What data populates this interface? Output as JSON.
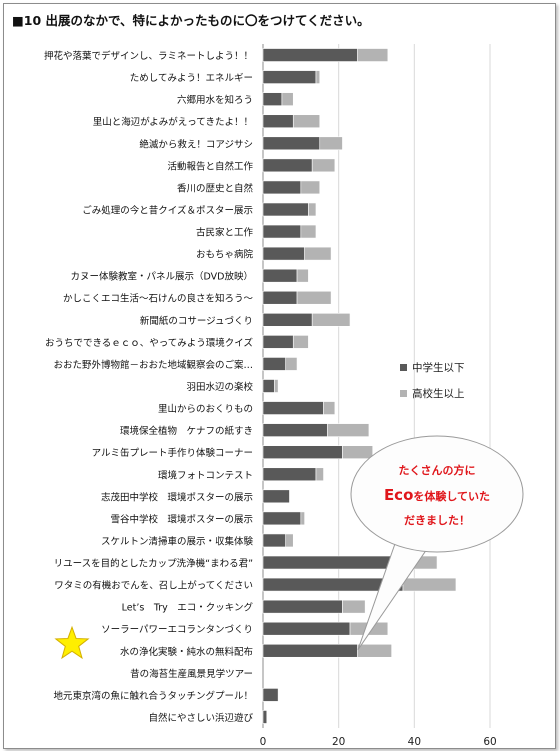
{
  "title": "■10 出展のなかで、特によかったものに〇をつけてください。",
  "colors": {
    "series1": "#595959",
    "series2": "#b3b3b3",
    "grid": "#d9d9d9",
    "callout": "#e0161b",
    "star": "#ffef00"
  },
  "callout": {
    "line1": "たくさんの方に",
    "line2_big": "Eco",
    "line2_rest": "を体験していた",
    "line3": "だきました！"
  },
  "chart_data": {
    "type": "bar",
    "orientation": "horizontal",
    "stacked": true,
    "title": "",
    "xlim": [
      0,
      60
    ],
    "xticks": [
      "0",
      "20",
      "40",
      "60"
    ],
    "grid": true,
    "legend_position": "right",
    "categories": [
      "押花や落葉でデザインし、ラミネートしよう！！",
      "ためしてみよう！エネルギー",
      "六郷用水を知ろう",
      "里山と海辺がよみがえってきたよ！！",
      "絶滅から救え！コアジサシ",
      "活動報告と自然工作",
      "香川の歴史と自然",
      "ごみ処理の今と昔クイズ＆ポスター展示",
      "古民家と工作",
      "おもちゃ病院",
      "カヌー体験教室・パネル展示（DVD放映）",
      "かしこくエコ生活～石けんの良さを知ろう～",
      "新聞紙のコサージュづくり",
      "おうちでできるｅｃｏ、やってみよう環境クイズ",
      "おおた野外博物館－おおた地域観察会のご案…",
      "羽田水辺の楽校",
      "里山からのおくりもの",
      "環境保全植物　ケナフの紙すき",
      "アルミ缶プレート手作り体験コーナー",
      "環境フォトコンテスト",
      "志茂田中学校　環境ポスターの展示",
      "雪谷中学校　環境ポスターの展示",
      "スケルトン清掃車の展示・収集体験",
      "リユースを目的としたカップ洗浄機“まわる君”",
      "ワタミの有機おでんを、召し上がってください",
      "Let’s　Try　エコ・クッキング",
      "ソーラーパワーエコランタンづくり",
      "水の浄化実験・純水の無料配布",
      "昔の海苔生産風景見学ツアー",
      "地元東京湾の魚に触れ合うタッチングプール！",
      "自然にやさしい浜辺遊び"
    ],
    "series": [
      {
        "name": "中学生以下",
        "values": [
          25,
          14,
          5,
          8,
          15,
          13,
          10,
          12,
          10,
          11,
          9,
          9,
          13,
          8,
          6,
          3,
          16,
          17,
          21,
          14,
          7,
          10,
          6,
          37,
          37,
          21,
          23,
          25,
          0,
          4,
          1
        ]
      },
      {
        "name": "高校生以上",
        "values": [
          8,
          1,
          3,
          7,
          6,
          6,
          5,
          2,
          4,
          7,
          3,
          9,
          10,
          4,
          3,
          1,
          3,
          11,
          8,
          2,
          0,
          1,
          2,
          9,
          14,
          6,
          10,
          9,
          0,
          0,
          0
        ]
      }
    ]
  }
}
